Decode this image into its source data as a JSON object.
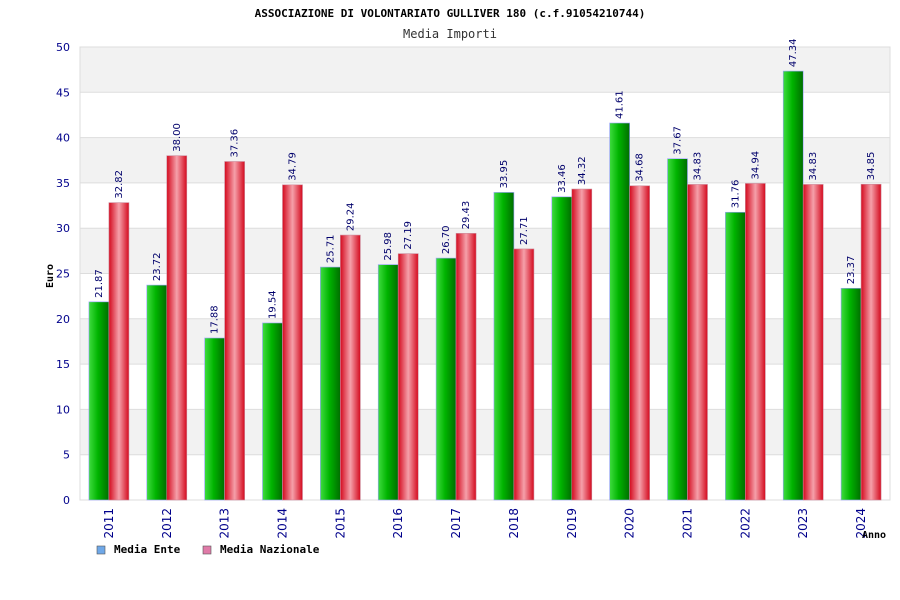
{
  "chart_data": {
    "type": "bar",
    "title": "ASSOCIAZIONE DI VOLONTARIATO GULLIVER 180 (c.f.91054210744)",
    "subtitle": "Media Importi",
    "ylabel": "Euro",
    "xlabel": "Anno",
    "ylim": [
      0,
      50
    ],
    "yticks": [
      "0",
      "5",
      "10",
      "15",
      "20",
      "25",
      "30",
      "35",
      "40",
      "45",
      "50"
    ],
    "categories": [
      "2011",
      "2012",
      "2013",
      "2014",
      "2015",
      "2016",
      "2017",
      "2018",
      "2019",
      "2020",
      "2021",
      "2022",
      "2023",
      "2024"
    ],
    "series": [
      {
        "name": "Media Ente",
        "color": "#00a000",
        "legend_color": "#6fa8e8",
        "values": [
          21.87,
          23.72,
          17.88,
          19.54,
          25.71,
          25.98,
          26.7,
          33.95,
          33.46,
          41.61,
          37.67,
          31.76,
          47.34,
          23.37
        ],
        "labels": [
          "21.87",
          "23.72",
          "17.88",
          "19.54",
          "25.71",
          "25.98",
          "26.70",
          "33.95",
          "33.46",
          "41.61",
          "37.67",
          "31.76",
          "47.34",
          "23.37"
        ]
      },
      {
        "name": "Media Nazionale",
        "color": "#e8102a",
        "legend_color": "#e07aa8",
        "values": [
          32.82,
          38.0,
          37.36,
          34.79,
          29.24,
          27.19,
          29.43,
          27.71,
          34.32,
          34.68,
          34.83,
          34.94,
          34.83,
          34.85
        ],
        "labels": [
          "32.82",
          "38.00",
          "37.36",
          "34.79",
          "29.24",
          "27.19",
          "29.43",
          "27.71",
          "34.32",
          "34.68",
          "34.83",
          "34.94",
          "34.83",
          "34.85"
        ]
      }
    ],
    "grid": true,
    "legend_position": "bottom-left"
  }
}
